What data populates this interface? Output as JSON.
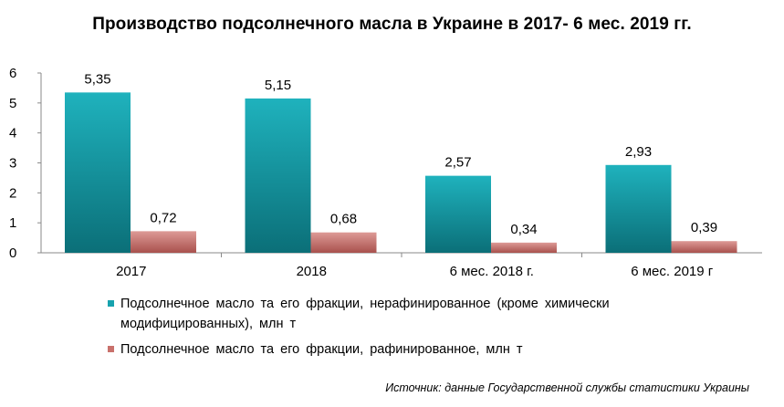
{
  "chart_data": {
    "type": "bar",
    "title": "Производство подсолнечного масла в Украине в 2017- 6 мес. 2019 гг.",
    "categories": [
      "2017",
      "2018",
      "6 мес. 2018 г.",
      "6 мес. 2019 г"
    ],
    "series": [
      {
        "name": "Подсолнечное масло та его фракции, нерафинированное (кроме химически модифицированных), млн т",
        "values": [
          5.35,
          5.15,
          2.57,
          2.93
        ],
        "labels": [
          "5,35",
          "5,15",
          "2,57",
          "2,93"
        ],
        "color": "#1aa7b3",
        "color_dark": "#0a6f78"
      },
      {
        "name": "Подсолнечное масло та его фракции, рафинированное, млн т",
        "values": [
          0.72,
          0.68,
          0.34,
          0.39
        ],
        "labels": [
          "0,72",
          "0,68",
          "0,34",
          "0,39"
        ],
        "color": "#d58a86",
        "color_dark": "#9c4a47"
      }
    ],
    "ylim": [
      0,
      6
    ],
    "yticks": [
      "0",
      "1",
      "2",
      "3",
      "4",
      "5",
      "6"
    ],
    "grid": false,
    "legend_position": "bottom",
    "source": "Источник: данные Государственной службы статистики Украины"
  }
}
